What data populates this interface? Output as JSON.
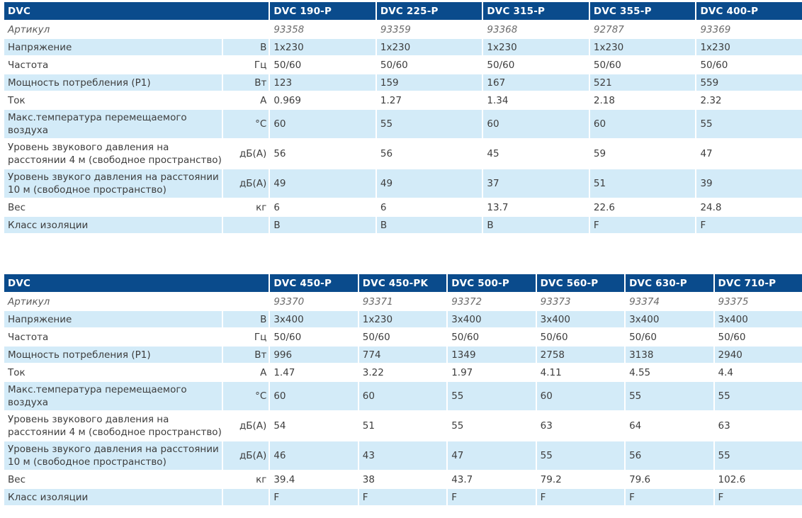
{
  "tables": [
    {
      "title": "DVC",
      "models": [
        "DVC 190-P",
        "DVC 225-P",
        "DVC 315-P",
        "DVC 355-P",
        "DVC 400-P"
      ],
      "rows": [
        {
          "label": "Артикул",
          "unit": "",
          "values": [
            "93358",
            "93359",
            "93368",
            "92787",
            "93369"
          ]
        },
        {
          "label": "Напряжение",
          "unit": "В",
          "values": [
            "1x230",
            "1x230",
            "1x230",
            "1x230",
            "1x230"
          ]
        },
        {
          "label": "Частота",
          "unit": "Гц",
          "values": [
            "50/60",
            "50/60",
            "50/60",
            "50/60",
            "50/60"
          ]
        },
        {
          "label": "Мощность потребления (P1)",
          "unit": "Вт",
          "values": [
            "123",
            "159",
            "167",
            "521",
            "559"
          ]
        },
        {
          "label": "Ток",
          "unit": "А",
          "values": [
            "0.969",
            "1.27",
            "1.34",
            "2.18",
            "2.32"
          ]
        },
        {
          "label": "Макс.температура перемещаемого воздуха",
          "unit": "°C",
          "values": [
            "60",
            "55",
            "60",
            "60",
            "55"
          ]
        },
        {
          "label": "Уровень звукового давления на расстоянии 4 м (свободное пространство)",
          "unit": "дБ(А)",
          "values": [
            "56",
            "56",
            "45",
            "59",
            "47"
          ]
        },
        {
          "label": "Уровень звукого давления на расстоянии 10 м (свободное пространство)",
          "unit": "дБ(А)",
          "values": [
            "49",
            "49",
            "37",
            "51",
            "39"
          ]
        },
        {
          "label": "Вес",
          "unit": "кг",
          "values": [
            "6",
            "6",
            "13.7",
            "22.6",
            "24.8"
          ]
        },
        {
          "label": "Класс изоляции",
          "unit": "",
          "values": [
            "B",
            "B",
            "B",
            "F",
            "F"
          ]
        }
      ]
    },
    {
      "title": "DVC",
      "models": [
        "DVC 450-P",
        "DVC 450-PK",
        "DVC 500-P",
        "DVC 560-P",
        "DVC 630-P",
        "DVC 710-P"
      ],
      "rows": [
        {
          "label": "Артикул",
          "unit": "",
          "values": [
            "93370",
            "93371",
            "93372",
            "93373",
            "93374",
            "93375"
          ]
        },
        {
          "label": "Напряжение",
          "unit": "В",
          "values": [
            "3x400",
            "1x230",
            "3x400",
            "3x400",
            "3x400",
            "3x400"
          ]
        },
        {
          "label": "Частота",
          "unit": "Гц",
          "values": [
            "50/60",
            "50/60",
            "50/60",
            "50/60",
            "50/60",
            "50/60"
          ]
        },
        {
          "label": "Мощность потребления (P1)",
          "unit": "Вт",
          "values": [
            "996",
            "774",
            "1349",
            "2758",
            "3138",
            "2940"
          ]
        },
        {
          "label": "Ток",
          "unit": "А",
          "values": [
            "1.47",
            "3.22",
            "1.97",
            "4.11",
            "4.55",
            "4.4"
          ]
        },
        {
          "label": "Макс.температура перемещаемого воздуха",
          "unit": "°C",
          "values": [
            "60",
            "60",
            "55",
            "60",
            "55",
            "55"
          ]
        },
        {
          "label": "Уровень звукового давления на расстоянии 4 м (свободное пространство)",
          "unit": "дБ(А)",
          "values": [
            "54",
            "51",
            "55",
            "63",
            "64",
            "63"
          ]
        },
        {
          "label": "Уровень звукого давления на расстоянии 10 м (свободное пространство)",
          "unit": "дБ(А)",
          "values": [
            "46",
            "43",
            "47",
            "55",
            "56",
            "55"
          ]
        },
        {
          "label": "Вес",
          "unit": "кг",
          "values": [
            "39.4",
            "38",
            "43.7",
            "79.2",
            "79.6",
            "102.6"
          ]
        },
        {
          "label": "Класс изоляции",
          "unit": "",
          "values": [
            "F",
            "F",
            "F",
            "F",
            "F",
            "F"
          ]
        }
      ]
    }
  ]
}
